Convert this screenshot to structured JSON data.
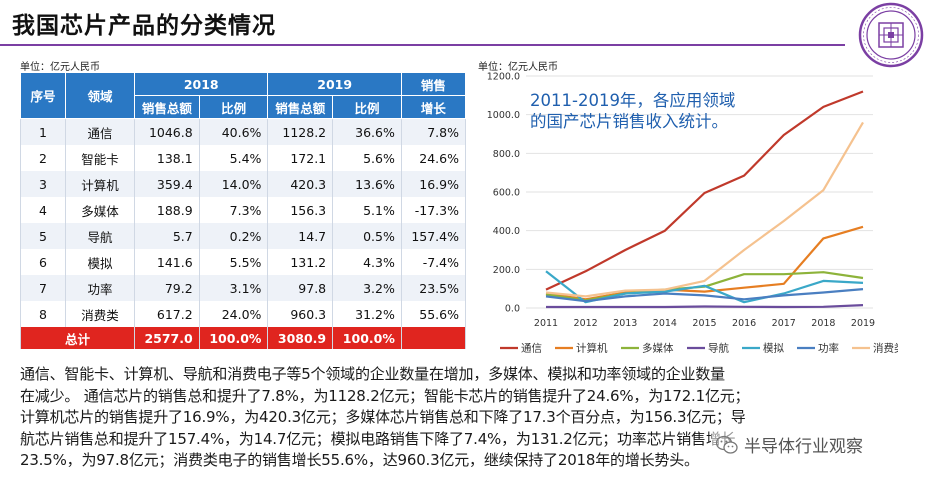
{
  "title": "我国芯片产品的分类情况",
  "table": {
    "unit": "单位：亿元人民币",
    "headers": {
      "seq": "序号",
      "field": "领域",
      "year1": "2018",
      "year2": "2019",
      "sales": "销售",
      "total_sales": "销售总额",
      "ratio": "比例",
      "growth": "增长"
    },
    "rows": [
      {
        "no": "1",
        "field": "通信",
        "s2018": "1046.8",
        "r2018": "40.6%",
        "s2019": "1128.2",
        "r2019": "36.6%",
        "growth": "7.8%"
      },
      {
        "no": "2",
        "field": "智能卡",
        "s2018": "138.1",
        "r2018": "5.4%",
        "s2019": "172.1",
        "r2019": "5.6%",
        "growth": "24.6%"
      },
      {
        "no": "3",
        "field": "计算机",
        "s2018": "359.4",
        "r2018": "14.0%",
        "s2019": "420.3",
        "r2019": "13.6%",
        "growth": "16.9%"
      },
      {
        "no": "4",
        "field": "多媒体",
        "s2018": "188.9",
        "r2018": "7.3%",
        "s2019": "156.3",
        "r2019": "5.1%",
        "growth": "-17.3%"
      },
      {
        "no": "5",
        "field": "导航",
        "s2018": "5.7",
        "r2018": "0.2%",
        "s2019": "14.7",
        "r2019": "0.5%",
        "growth": "157.4%"
      },
      {
        "no": "6",
        "field": "模拟",
        "s2018": "141.6",
        "r2018": "5.5%",
        "s2019": "131.2",
        "r2019": "4.3%",
        "growth": "-7.4%"
      },
      {
        "no": "7",
        "field": "功率",
        "s2018": "79.2",
        "r2018": "3.1%",
        "s2019": "97.8",
        "r2019": "3.2%",
        "growth": "23.5%"
      },
      {
        "no": "8",
        "field": "消费类",
        "s2018": "617.2",
        "r2018": "24.0%",
        "s2019": "960.3",
        "r2019": "31.2%",
        "growth": "55.6%"
      }
    ],
    "total": {
      "label": "总计",
      "s2018": "2577.0",
      "r2018": "100.0%",
      "s2019": "3080.9",
      "r2019": "100.0%"
    }
  },
  "chart_unit": "单位：亿元人民币",
  "chart_data": {
    "type": "line",
    "title": "2011-2019年，各应用领域的国产芯片销售收入统计。",
    "title_line1": "2011-2019年，各应用领域",
    "title_line2": "的国产芯片销售收入统计。",
    "x": [
      "2011",
      "2012",
      "2013",
      "2014",
      "2015",
      "2016",
      "2017",
      "2018",
      "2019"
    ],
    "ylim": [
      0,
      1200
    ],
    "yticks": [
      "0.0",
      "200.0",
      "400.0",
      "600.0",
      "800.0",
      "1000.0",
      "1200.0"
    ],
    "grid": true,
    "legend_position": "bottom",
    "series": [
      {
        "name": "通信",
        "color": "#c0392b",
        "values": [
          95,
          190,
          300,
          400,
          595,
          685,
          895,
          1040,
          1120
        ]
      },
      {
        "name": "计算机",
        "color": "#e67e22",
        "values": [
          75,
          45,
          80,
          95,
          85,
          105,
          125,
          360,
          420
        ]
      },
      {
        "name": "多媒体",
        "color": "#8db33a",
        "values": [
          70,
          40,
          75,
          95,
          110,
          175,
          175,
          185,
          155
        ]
      },
      {
        "name": "导航",
        "color": "#6a4c9c",
        "values": [
          5,
          5,
          5,
          5,
          8,
          6,
          5,
          6,
          15
        ]
      },
      {
        "name": "模拟",
        "color": "#3aa8c8",
        "values": [
          190,
          30,
          75,
          85,
          115,
          30,
          75,
          140,
          130
        ]
      },
      {
        "name": "功率",
        "color": "#4a7fc1",
        "values": [
          60,
          35,
          60,
          75,
          65,
          45,
          65,
          80,
          98
        ]
      },
      {
        "name": "消费类",
        "color": "#f5c28f",
        "values": [
          80,
          60,
          90,
          95,
          140,
          300,
          450,
          610,
          960
        ]
      }
    ]
  },
  "paragraph": [
    "通信、智能卡、计算机、导航和消费电子等5个领域的企业数量在增加，多媒体、模拟和功率领域的企业数量",
    "在减少。 通信芯片的销售总和提升了7.8%，为1128.2亿元；智能卡芯片的销售提升了24.6%，为172.1亿元；",
    "计算机芯片的销售提升了16.9%，为420.3亿元；多媒体芯片销售总和下降了17.3个百分点，为156.3亿元；导",
    "航芯片销售总和提升了157.4%，为14.7亿元；模拟电路销售下降了7.4%，为131.2亿元；功率芯片销售增长",
    "23.5%，为97.8亿元；消费类电子的销售增长55.6%，达960.3亿元，继续保持了2018年的增长势头。"
  ],
  "watermark": "半导体行业观察"
}
